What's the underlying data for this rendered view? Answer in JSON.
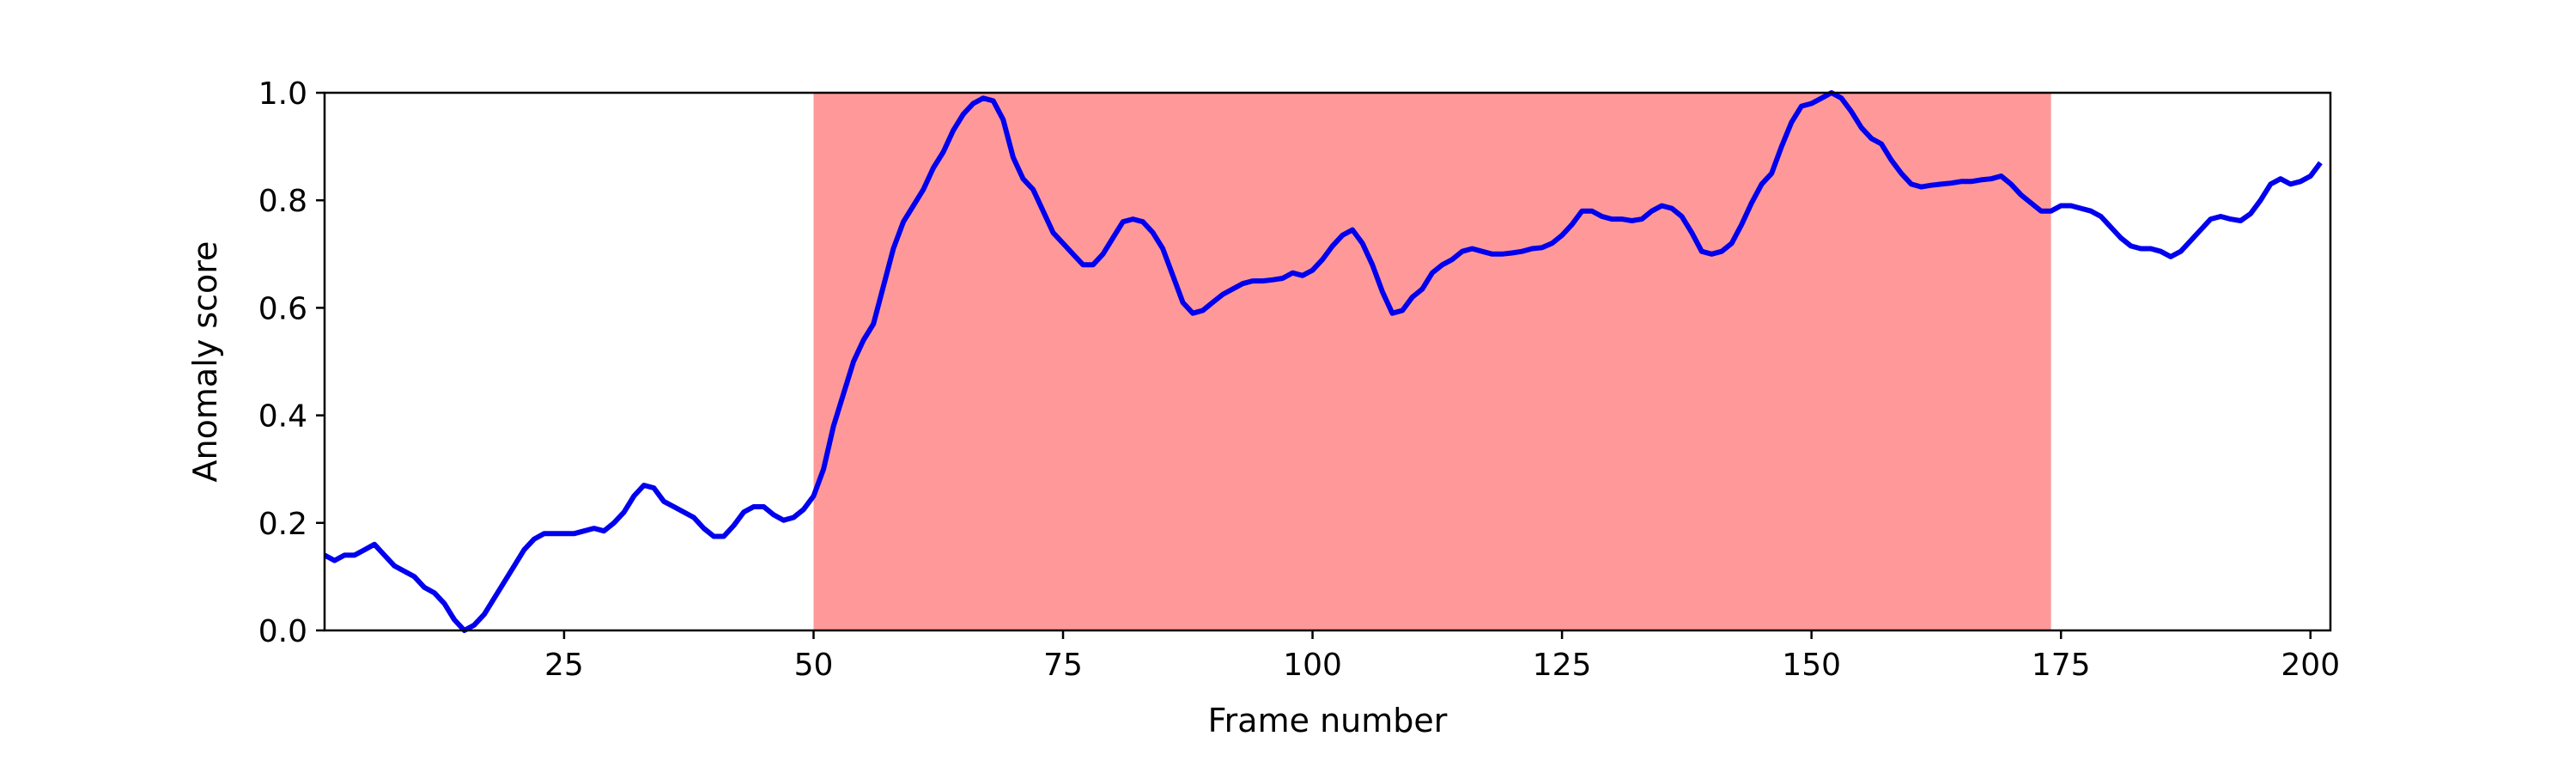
{
  "chart_data": {
    "type": "line",
    "title": "",
    "xlabel": "Frame number",
    "ylabel": "Anomaly score",
    "xlim": [
      1,
      202
    ],
    "ylim": [
      0.0,
      1.0
    ],
    "x_ticks": [
      25,
      50,
      75,
      100,
      125,
      150,
      175,
      200
    ],
    "x_tick_labels": [
      "25",
      "50",
      "75",
      "100",
      "125",
      "150",
      "175",
      "200"
    ],
    "y_ticks": [
      0.0,
      0.2,
      0.4,
      0.6,
      0.8,
      1.0
    ],
    "y_tick_labels": [
      "0.0",
      "0.2",
      "0.4",
      "0.6",
      "0.8",
      "1.0"
    ],
    "grid": false,
    "highlight_region": {
      "x_start": 50,
      "x_end": 174,
      "color": "#ff9999"
    },
    "series": [
      {
        "color": "#0000ee",
        "points": [
          [
            1,
            0.14
          ],
          [
            2,
            0.13
          ],
          [
            3,
            0.14
          ],
          [
            4,
            0.14
          ],
          [
            5,
            0.15
          ],
          [
            6,
            0.16
          ],
          [
            7,
            0.14
          ],
          [
            8,
            0.12
          ],
          [
            9,
            0.11
          ],
          [
            10,
            0.1
          ],
          [
            11,
            0.08
          ],
          [
            12,
            0.07
          ],
          [
            13,
            0.05
          ],
          [
            14,
            0.02
          ],
          [
            15,
            0.0
          ],
          [
            16,
            0.01
          ],
          [
            17,
            0.03
          ],
          [
            18,
            0.06
          ],
          [
            19,
            0.09
          ],
          [
            20,
            0.12
          ],
          [
            21,
            0.15
          ],
          [
            22,
            0.17
          ],
          [
            23,
            0.18
          ],
          [
            24,
            0.18
          ],
          [
            25,
            0.18
          ],
          [
            26,
            0.18
          ],
          [
            27,
            0.185
          ],
          [
            28,
            0.19
          ],
          [
            29,
            0.185
          ],
          [
            30,
            0.2
          ],
          [
            31,
            0.22
          ],
          [
            32,
            0.25
          ],
          [
            33,
            0.27
          ],
          [
            34,
            0.265
          ],
          [
            35,
            0.24
          ],
          [
            36,
            0.23
          ],
          [
            37,
            0.22
          ],
          [
            38,
            0.21
          ],
          [
            39,
            0.19
          ],
          [
            40,
            0.175
          ],
          [
            41,
            0.175
          ],
          [
            42,
            0.195
          ],
          [
            43,
            0.22
          ],
          [
            44,
            0.23
          ],
          [
            45,
            0.23
          ],
          [
            46,
            0.215
          ],
          [
            47,
            0.205
          ],
          [
            48,
            0.21
          ],
          [
            49,
            0.225
          ],
          [
            50,
            0.25
          ],
          [
            51,
            0.3
          ],
          [
            52,
            0.38
          ],
          [
            53,
            0.44
          ],
          [
            54,
            0.5
          ],
          [
            55,
            0.54
          ],
          [
            56,
            0.57
          ],
          [
            57,
            0.64
          ],
          [
            58,
            0.71
          ],
          [
            59,
            0.76
          ],
          [
            60,
            0.79
          ],
          [
            61,
            0.82
          ],
          [
            62,
            0.86
          ],
          [
            63,
            0.89
          ],
          [
            64,
            0.93
          ],
          [
            65,
            0.96
          ],
          [
            66,
            0.98
          ],
          [
            67,
            0.99
          ],
          [
            68,
            0.985
          ],
          [
            69,
            0.95
          ],
          [
            70,
            0.88
          ],
          [
            71,
            0.84
          ],
          [
            72,
            0.82
          ],
          [
            73,
            0.78
          ],
          [
            74,
            0.74
          ],
          [
            75,
            0.72
          ],
          [
            76,
            0.7
          ],
          [
            77,
            0.68
          ],
          [
            78,
            0.68
          ],
          [
            79,
            0.7
          ],
          [
            80,
            0.73
          ],
          [
            81,
            0.76
          ],
          [
            82,
            0.765
          ],
          [
            83,
            0.76
          ],
          [
            84,
            0.74
          ],
          [
            85,
            0.71
          ],
          [
            86,
            0.66
          ],
          [
            87,
            0.61
          ],
          [
            88,
            0.59
          ],
          [
            89,
            0.595
          ],
          [
            90,
            0.61
          ],
          [
            91,
            0.625
          ],
          [
            92,
            0.635
          ],
          [
            93,
            0.645
          ],
          [
            94,
            0.65
          ],
          [
            95,
            0.65
          ],
          [
            96,
            0.652
          ],
          [
            97,
            0.655
          ],
          [
            98,
            0.665
          ],
          [
            99,
            0.66
          ],
          [
            100,
            0.67
          ],
          [
            101,
            0.69
          ],
          [
            102,
            0.715
          ],
          [
            103,
            0.735
          ],
          [
            104,
            0.745
          ],
          [
            105,
            0.72
          ],
          [
            106,
            0.68
          ],
          [
            107,
            0.63
          ],
          [
            108,
            0.59
          ],
          [
            109,
            0.595
          ],
          [
            110,
            0.62
          ],
          [
            111,
            0.635
          ],
          [
            112,
            0.665
          ],
          [
            113,
            0.68
          ],
          [
            114,
            0.69
          ],
          [
            115,
            0.705
          ],
          [
            116,
            0.71
          ],
          [
            117,
            0.705
          ],
          [
            118,
            0.7
          ],
          [
            119,
            0.7
          ],
          [
            120,
            0.702
          ],
          [
            121,
            0.705
          ],
          [
            122,
            0.71
          ],
          [
            123,
            0.712
          ],
          [
            124,
            0.72
          ],
          [
            125,
            0.735
          ],
          [
            126,
            0.755
          ],
          [
            127,
            0.78
          ],
          [
            128,
            0.78
          ],
          [
            129,
            0.77
          ],
          [
            130,
            0.765
          ],
          [
            131,
            0.765
          ],
          [
            132,
            0.762
          ],
          [
            133,
            0.765
          ],
          [
            134,
            0.78
          ],
          [
            135,
            0.79
          ],
          [
            136,
            0.785
          ],
          [
            137,
            0.77
          ],
          [
            138,
            0.74
          ],
          [
            139,
            0.705
          ],
          [
            140,
            0.7
          ],
          [
            141,
            0.705
          ],
          [
            142,
            0.72
          ],
          [
            143,
            0.755
          ],
          [
            144,
            0.795
          ],
          [
            145,
            0.83
          ],
          [
            146,
            0.85
          ],
          [
            147,
            0.9
          ],
          [
            148,
            0.945
          ],
          [
            149,
            0.975
          ],
          [
            150,
            0.98
          ],
          [
            151,
            0.99
          ],
          [
            152,
            1.0
          ],
          [
            153,
            0.99
          ],
          [
            154,
            0.965
          ],
          [
            155,
            0.935
          ],
          [
            156,
            0.915
          ],
          [
            157,
            0.905
          ],
          [
            158,
            0.875
          ],
          [
            159,
            0.85
          ],
          [
            160,
            0.83
          ],
          [
            161,
            0.825
          ],
          [
            162,
            0.828
          ],
          [
            163,
            0.83
          ],
          [
            164,
            0.832
          ],
          [
            165,
            0.835
          ],
          [
            166,
            0.835
          ],
          [
            167,
            0.838
          ],
          [
            168,
            0.84
          ],
          [
            169,
            0.845
          ],
          [
            170,
            0.83
          ],
          [
            171,
            0.81
          ],
          [
            172,
            0.795
          ],
          [
            173,
            0.78
          ],
          [
            174,
            0.78
          ],
          [
            175,
            0.79
          ],
          [
            176,
            0.79
          ],
          [
            177,
            0.785
          ],
          [
            178,
            0.78
          ],
          [
            179,
            0.77
          ],
          [
            180,
            0.75
          ],
          [
            181,
            0.73
          ],
          [
            182,
            0.715
          ],
          [
            183,
            0.71
          ],
          [
            184,
            0.71
          ],
          [
            185,
            0.705
          ],
          [
            186,
            0.695
          ],
          [
            187,
            0.705
          ],
          [
            188,
            0.725
          ],
          [
            189,
            0.745
          ],
          [
            190,
            0.765
          ],
          [
            191,
            0.77
          ],
          [
            192,
            0.765
          ],
          [
            193,
            0.762
          ],
          [
            194,
            0.775
          ],
          [
            195,
            0.8
          ],
          [
            196,
            0.83
          ],
          [
            197,
            0.84
          ],
          [
            198,
            0.83
          ],
          [
            199,
            0.835
          ],
          [
            200,
            0.845
          ],
          [
            201,
            0.87
          ]
        ]
      }
    ]
  }
}
